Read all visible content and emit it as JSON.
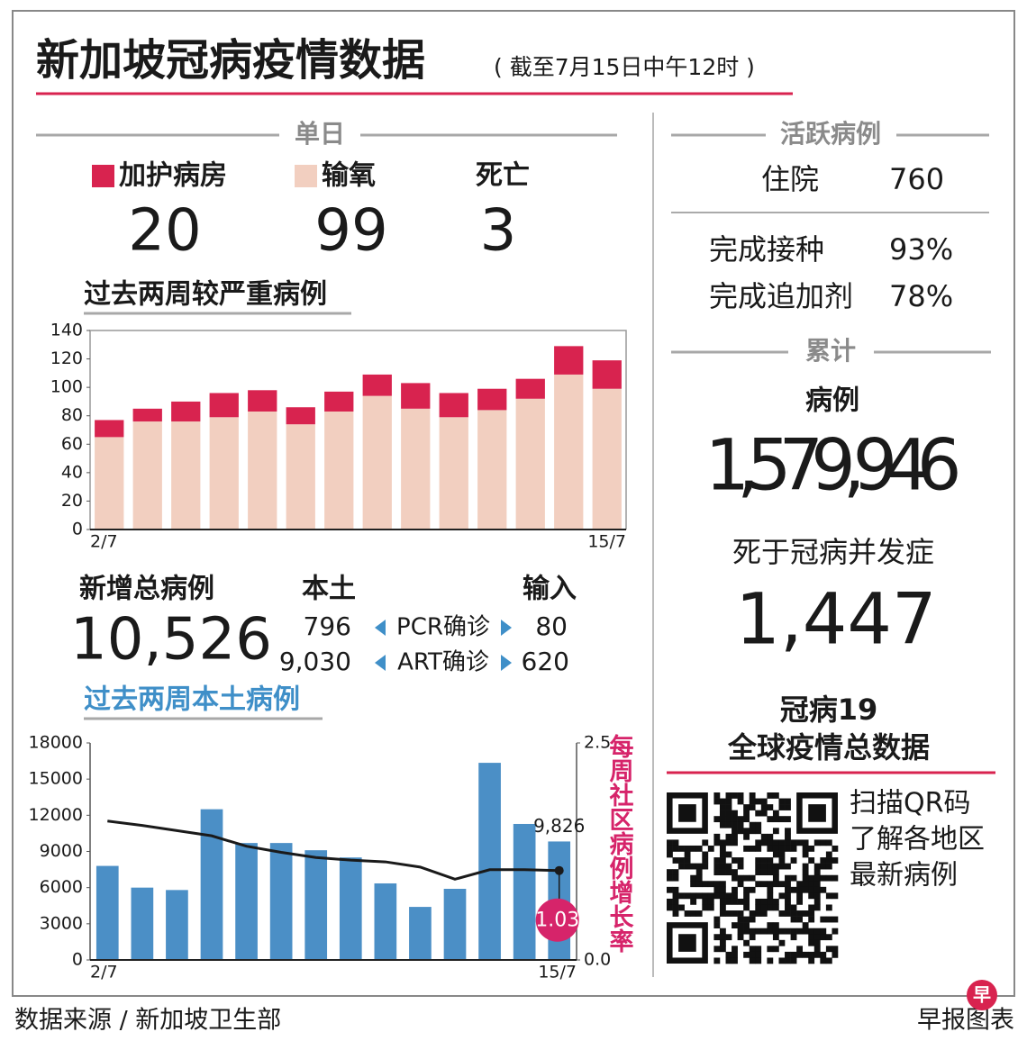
{
  "header": {
    "title": "新加坡冠病疫情数据",
    "subtitle": "( 截至7月15日中午12时 )"
  },
  "daily": {
    "heading": "单日",
    "death_label": "死亡",
    "death_value": 3
  },
  "new_cases": {
    "label": "新增总病例",
    "total": "10,526",
    "local_label": "本土",
    "imported_label": "输入",
    "rows": [
      {
        "type": "PCR确诊",
        "local": "796",
        "imported": "80"
      },
      {
        "type": "ART确诊",
        "local": "9,030",
        "imported": "620"
      }
    ]
  },
  "active": {
    "heading": "活跃病例",
    "rows": [
      {
        "label": "住院",
        "value": "760"
      },
      {
        "label": "完成接种",
        "value": "93%"
      },
      {
        "label": "完成追加剂",
        "value": "78%"
      }
    ]
  },
  "cumulative": {
    "heading": "累计",
    "cases_label": "病例",
    "cases": "1,579,946",
    "deaths_label": "死于冠病并发症",
    "deaths": "1,447"
  },
  "global": {
    "title_lines": [
      "冠病19",
      "全球疫情总数据"
    ],
    "qr_text": [
      "扫描QR码",
      "了解各地区",
      "最新病例"
    ]
  },
  "footer": {
    "source": "数据来源 / 新加坡卫生部",
    "credit": "早报图表",
    "logo": "早"
  },
  "chart_data": [
    {
      "type": "stacked_bar",
      "title": "过去两周较严重病例",
      "categories": [
        "2/7",
        null,
        null,
        null,
        null,
        null,
        null,
        null,
        null,
        null,
        null,
        null,
        null,
        "15/7"
      ],
      "series": [
        {
          "name": "加护病房",
          "color": "#d8234f",
          "values": [
            12,
            9,
            14,
            17,
            15,
            12,
            14,
            15,
            18,
            17,
            15,
            14,
            20,
            20
          ]
        },
        {
          "name": "输氧",
          "color": "#f2cfc0",
          "values": [
            65,
            76,
            76,
            79,
            83,
            74,
            83,
            94,
            85,
            79,
            84,
            92,
            109,
            99
          ]
        }
      ],
      "ylim": [
        0,
        140
      ],
      "yticks": [
        0,
        20,
        40,
        60,
        80,
        100,
        120,
        140
      ]
    },
    {
      "type": "combo",
      "title": "过去两周本土病例",
      "categories": [
        "2/7",
        null,
        null,
        null,
        null,
        null,
        null,
        null,
        null,
        null,
        null,
        null,
        null,
        "15/7"
      ],
      "series": [
        {
          "type": "bar",
          "color": "#4b8fc6",
          "values": [
            7800,
            6000,
            5800,
            12500,
            9700,
            9700,
            9100,
            8500,
            6350,
            4400,
            5900,
            16350,
            11280,
            9826
          ],
          "value_labels": [
            null,
            null,
            null,
            null,
            null,
            null,
            null,
            null,
            null,
            null,
            null,
            null,
            null,
            "9,826"
          ]
        },
        {
          "type": "line",
          "axis": "y2",
          "color": "#1a1a1a",
          "values": [
            1.6,
            1.55,
            1.49,
            1.43,
            1.31,
            1.24,
            1.18,
            1.15,
            1.13,
            1.07,
            0.93,
            1.04,
            1.04,
            1.03
          ],
          "value_labels": [
            null,
            null,
            null,
            null,
            null,
            null,
            null,
            null,
            null,
            null,
            null,
            null,
            null,
            "1.03"
          ]
        }
      ],
      "y2label": "每周社区病例增长率",
      "ylim": [
        0,
        18000
      ],
      "yticks": [
        0,
        3000,
        6000,
        9000,
        12000,
        15000,
        18000
      ],
      "y2lim": [
        0,
        2.5
      ],
      "y2ticks": [
        {
          "value": 0,
          "label": "0.0"
        },
        2.5
      ]
    }
  ]
}
